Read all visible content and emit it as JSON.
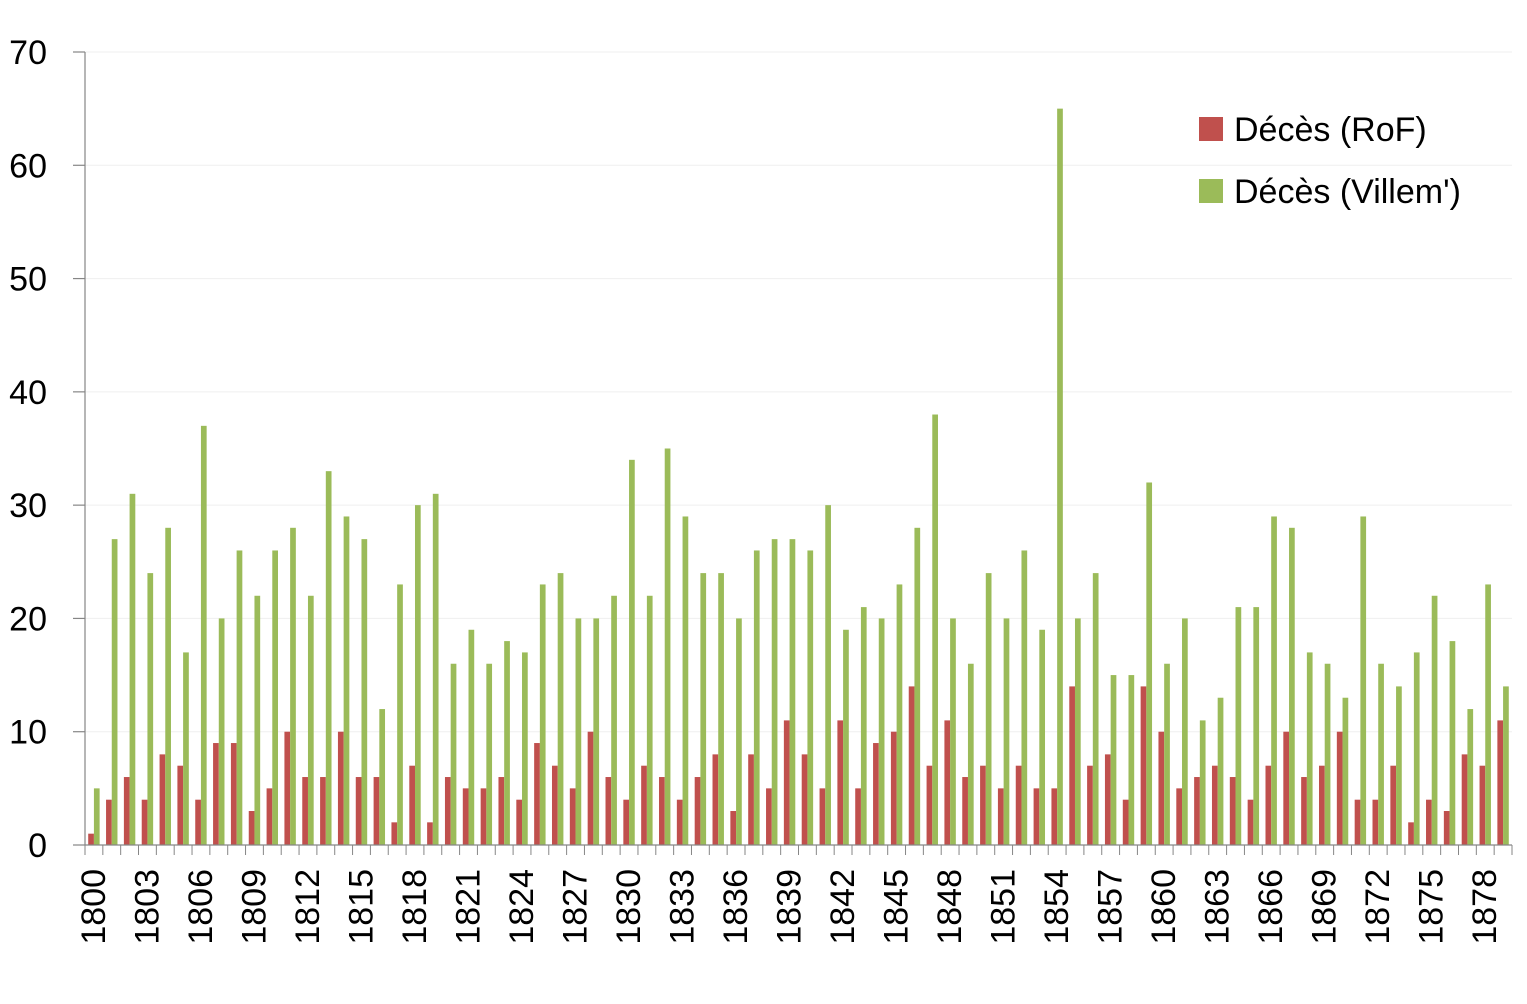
{
  "chart_data": {
    "type": "bar",
    "title": "",
    "xlabel": "",
    "ylabel": "",
    "ylim": [
      0,
      70
    ],
    "yticks": [
      "0",
      "10",
      "20",
      "30",
      "40",
      "50",
      "60",
      "70"
    ],
    "grid": true,
    "legend_position": "top-right",
    "categories": [
      "1800",
      "1801",
      "1802",
      "1803",
      "1804",
      "1805",
      "1806",
      "1807",
      "1808",
      "1809",
      "1810",
      "1811",
      "1812",
      "1813",
      "1814",
      "1815",
      "1816",
      "1817",
      "1818",
      "1819",
      "1820",
      "1821",
      "1822",
      "1823",
      "1824",
      "1825",
      "1826",
      "1827",
      "1828",
      "1829",
      "1830",
      "1831",
      "1832",
      "1833",
      "1834",
      "1835",
      "1836",
      "1837",
      "1838",
      "1839",
      "1840",
      "1841",
      "1842",
      "1843",
      "1844",
      "1845",
      "1846",
      "1847",
      "1848",
      "1849",
      "1850",
      "1851",
      "1852",
      "1853",
      "1854",
      "1855",
      "1856",
      "1857",
      "1858",
      "1859",
      "1860",
      "1861",
      "1862",
      "1863",
      "1864",
      "1865",
      "1866",
      "1867",
      "1868",
      "1869",
      "1870",
      "1871",
      "1872",
      "1873",
      "1874",
      "1875",
      "1876",
      "1877",
      "1878",
      "1879"
    ],
    "xtick_labels": [
      "1800",
      "1803",
      "1806",
      "1809",
      "1812",
      "1815",
      "1818",
      "1821",
      "1824",
      "1827",
      "1830",
      "1833",
      "1836",
      "1839",
      "1842",
      "1845",
      "1848",
      "1851",
      "1854",
      "1857",
      "1860",
      "1863",
      "1866",
      "1869",
      "1872",
      "1875",
      "1878"
    ],
    "series": [
      {
        "name": "Décès (RoF)",
        "color": "#c0504d",
        "values": [
          1,
          4,
          6,
          4,
          8,
          7,
          4,
          9,
          9,
          3,
          5,
          10,
          6,
          6,
          10,
          6,
          6,
          2,
          7,
          2,
          6,
          5,
          5,
          6,
          4,
          9,
          7,
          5,
          10,
          6,
          4,
          7,
          6,
          4,
          6,
          8,
          3,
          8,
          5,
          11,
          8,
          5,
          11,
          5,
          9,
          10,
          14,
          7,
          11,
          6,
          7,
          5,
          7,
          5,
          5,
          14,
          7,
          8,
          4,
          14,
          10,
          5,
          6,
          7,
          6,
          4,
          7,
          10,
          6,
          7,
          10,
          4,
          4,
          7,
          2,
          4,
          3,
          8,
          7,
          11
        ]
      },
      {
        "name": "Décès (Villem')",
        "color": "#9bbb59",
        "values": [
          5,
          27,
          31,
          24,
          28,
          17,
          37,
          20,
          26,
          22,
          26,
          28,
          22,
          33,
          29,
          27,
          12,
          23,
          30,
          31,
          16,
          19,
          16,
          18,
          17,
          23,
          24,
          20,
          20,
          22,
          34,
          22,
          35,
          29,
          24,
          24,
          20,
          26,
          27,
          27,
          26,
          30,
          19,
          21,
          20,
          23,
          28,
          38,
          20,
          16,
          24,
          20,
          26,
          19,
          65,
          20,
          24,
          15,
          15,
          32,
          16,
          20,
          11,
          13,
          21,
          21,
          29,
          28,
          17,
          16,
          13,
          29,
          16,
          14,
          17,
          22,
          18,
          12,
          23,
          14
        ]
      }
    ]
  }
}
